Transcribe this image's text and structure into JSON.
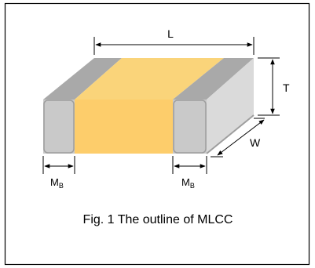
{
  "figure": {
    "caption": "Fig. 1 The outline of MLCC",
    "dimensions": {
      "length": "L",
      "thickness": "T",
      "width": "W",
      "band": {
        "main": "M",
        "sub": "B"
      }
    },
    "colors": {
      "frame": "#000000",
      "body_top": "#FAD47A",
      "body_front": "#FDCD6B",
      "terminal_front": "#C9C9C9",
      "terminal_top": "#A9A9A9",
      "terminal_side": "#DADADA",
      "edge_shadow": "#9E9E9E"
    }
  }
}
